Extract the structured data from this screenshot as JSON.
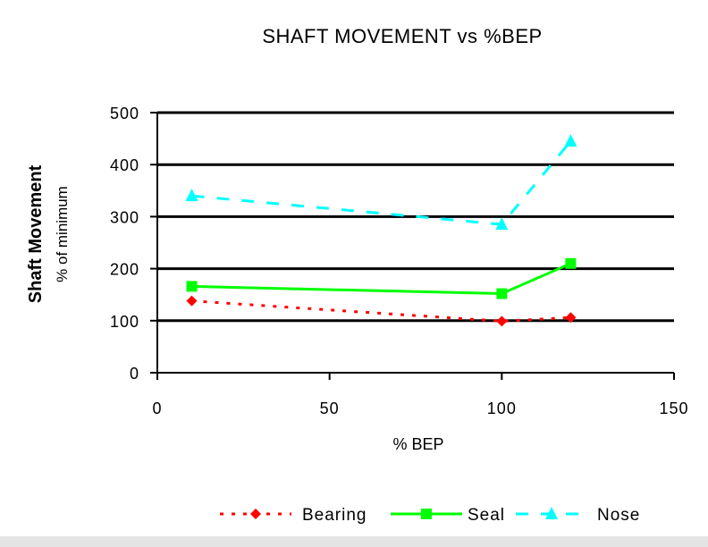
{
  "chart_data": {
    "type": "line",
    "title": "SHAFT MOVEMENT vs %BEP",
    "xlabel": "% BEP",
    "ylabel": "Shaft Movement",
    "ylabel_sub": "% of minimum",
    "xlim": [
      0,
      150
    ],
    "ylim": [
      0,
      500
    ],
    "xticks": [
      0,
      50,
      100,
      150
    ],
    "yticks": [
      0,
      100,
      200,
      300,
      400,
      500
    ],
    "grid": "horizontal",
    "legend": "bottom",
    "series": [
      {
        "name": "Bearing",
        "x": [
          10,
          100,
          120
        ],
        "y": [
          138,
          99,
          106
        ],
        "color": "#ff0000",
        "dash": "dotted",
        "marker": "diamond"
      },
      {
        "name": "Seal",
        "x": [
          10,
          100,
          120
        ],
        "y": [
          166,
          152,
          210
        ],
        "color": "#00ff00",
        "dash": "solid",
        "marker": "square"
      },
      {
        "name": "Nose",
        "x": [
          10,
          100,
          120
        ],
        "y": [
          340,
          285,
          445
        ],
        "color": "#00ffff",
        "dash": "dashed",
        "marker": "triangle"
      }
    ]
  }
}
